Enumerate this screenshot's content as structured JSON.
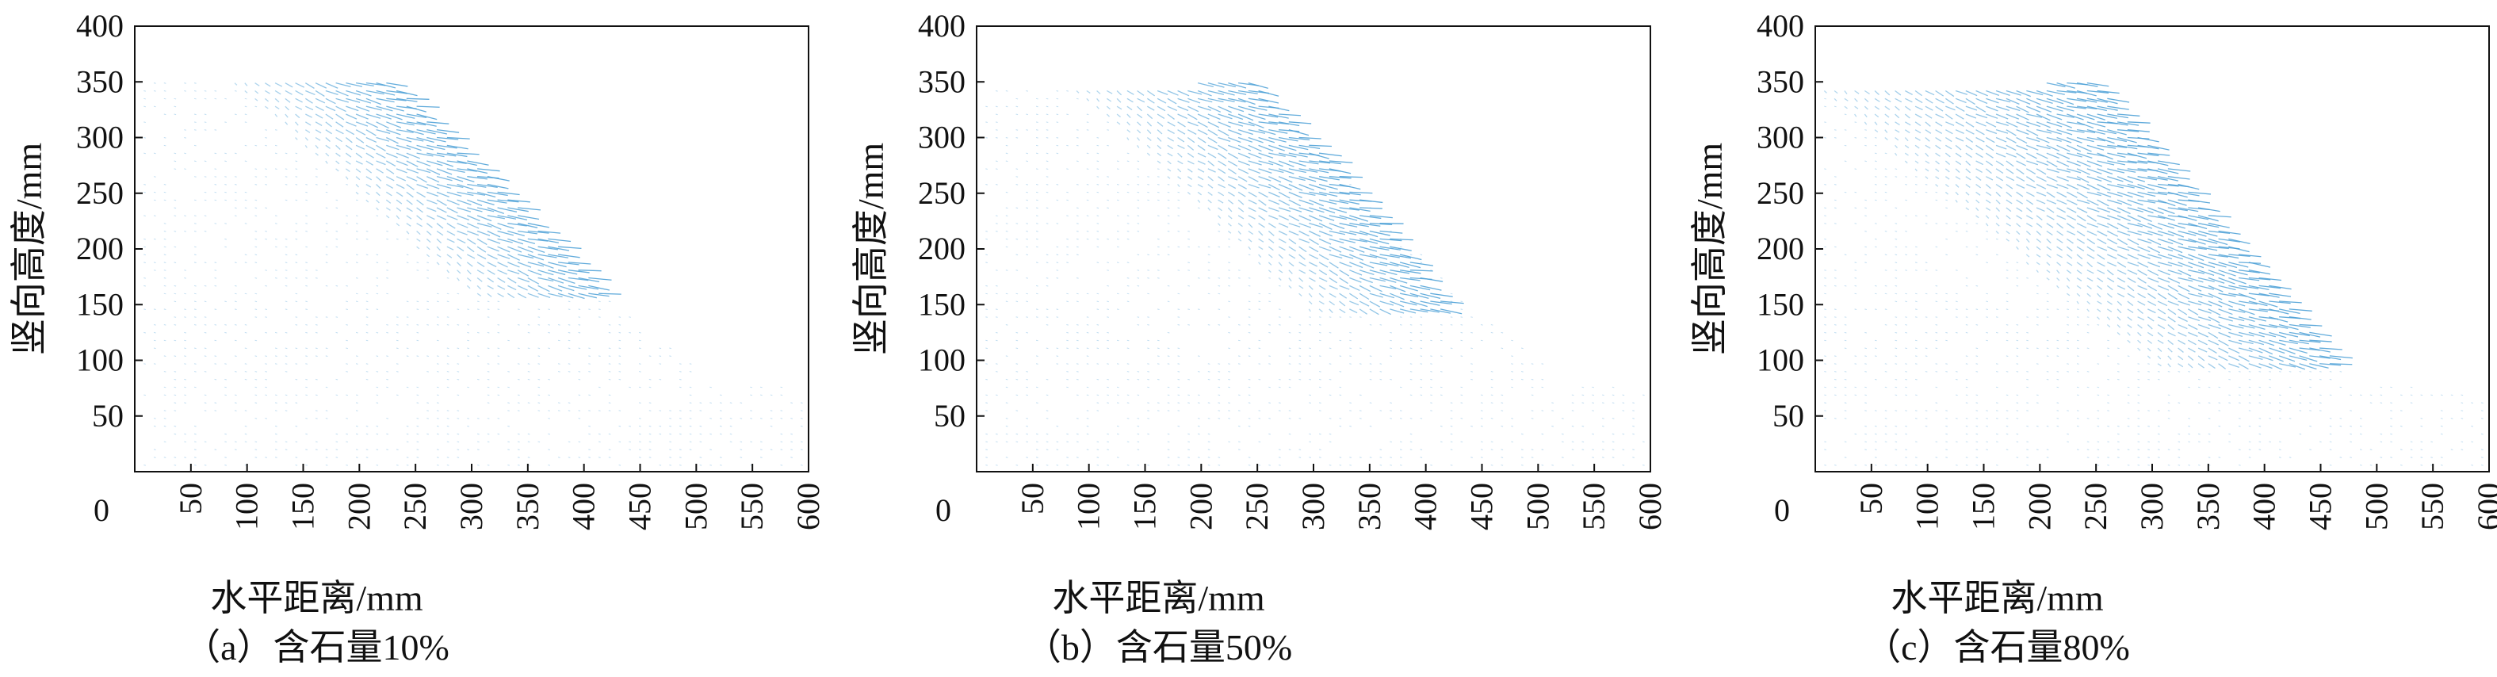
{
  "chart_data": [
    {
      "type": "quiver",
      "caption": "（a）含石量10%",
      "xlabel": "水平距离/mm",
      "ylabel": "竖向高度/mm",
      "xlim": [
        0,
        600
      ],
      "ylim": [
        0,
        400
      ],
      "xticks": [
        "50",
        "100",
        "150",
        "200",
        "250",
        "300",
        "350",
        "400",
        "450",
        "500",
        "550",
        "600"
      ],
      "yticks": [
        "50",
        "100",
        "150",
        "200",
        "250",
        "300",
        "350",
        "400"
      ],
      "origin_label": "0",
      "fast_zone": {
        "top_x": [
          170,
          235
        ],
        "bottom_x": [
          380,
          420
        ],
        "y_range": [
          160,
          350
        ]
      },
      "material_profile": [
        [
          0,
          350
        ],
        [
          230,
          350
        ],
        [
          430,
          150
        ],
        [
          520,
          80
        ],
        [
          600,
          80
        ]
      ],
      "grid": false,
      "arrow_color": "#4a9fd6"
    },
    {
      "type": "quiver",
      "caption": "（b）含石量50%",
      "xlabel": "水平距离/mm",
      "ylabel": "竖向高度/mm",
      "xlim": [
        0,
        600
      ],
      "ylim": [
        0,
        400
      ],
      "xticks": [
        "50",
        "100",
        "150",
        "200",
        "250",
        "300",
        "350",
        "400",
        "450",
        "500",
        "550",
        "600"
      ],
      "yticks": [
        "50",
        "100",
        "150",
        "200",
        "250",
        "300",
        "350",
        "400"
      ],
      "origin_label": "0",
      "fast_zone": {
        "top_x": [
          160,
          260
        ],
        "bottom_x": [
          380,
          420
        ],
        "y_range": [
          145,
          350
        ]
      },
      "material_profile": [
        [
          0,
          345
        ],
        [
          245,
          350
        ],
        [
          450,
          140
        ],
        [
          530,
          80
        ],
        [
          600,
          80
        ]
      ],
      "grid": false,
      "arrow_color": "#4a9fd6"
    },
    {
      "type": "quiver",
      "caption": "（c）含石量80%",
      "xlabel": "水平距离/mm",
      "ylabel": "竖向高度/mm",
      "xlim": [
        0,
        600
      ],
      "ylim": [
        0,
        400
      ],
      "xticks": [
        "50",
        "100",
        "150",
        "200",
        "250",
        "300",
        "350",
        "400",
        "450",
        "500",
        "550",
        "600"
      ],
      "yticks": [
        "50",
        "100",
        "150",
        "200",
        "250",
        "300",
        "350",
        "400"
      ],
      "origin_label": "0",
      "fast_zone": {
        "top_x": [
          70,
          260
        ],
        "bottom_x": [
          380,
          470
        ],
        "y_range": [
          95,
          350
        ]
      },
      "material_profile": [
        [
          0,
          345
        ],
        [
          250,
          350
        ],
        [
          480,
          80
        ],
        [
          600,
          80
        ]
      ],
      "grid": false,
      "arrow_color": "#4a9fd6"
    }
  ]
}
